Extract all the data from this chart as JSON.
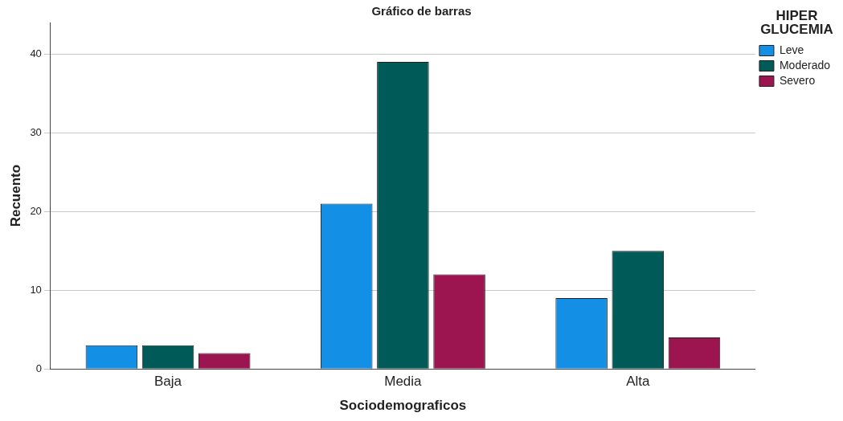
{
  "chart_data": {
    "type": "bar",
    "title": "Gráfico de barras",
    "xlabel": "Sociodemograficos",
    "ylabel": "Recuento",
    "legend_title": "HIPER GLUCEMIA",
    "categories": [
      "Baja",
      "Media",
      "Alta"
    ],
    "series": [
      {
        "name": "Leve",
        "color": "#1390e6",
        "values": [
          3,
          21,
          9
        ]
      },
      {
        "name": "Moderado",
        "color": "#005a57",
        "values": [
          3,
          39,
          15
        ]
      },
      {
        "name": "Severo",
        "color": "#9c1551",
        "values": [
          2,
          12,
          4
        ]
      }
    ],
    "ylim": [
      0,
      44
    ],
    "yticks": [
      0,
      10,
      20,
      30,
      40
    ],
    "grid": "y",
    "legend": "top right"
  }
}
